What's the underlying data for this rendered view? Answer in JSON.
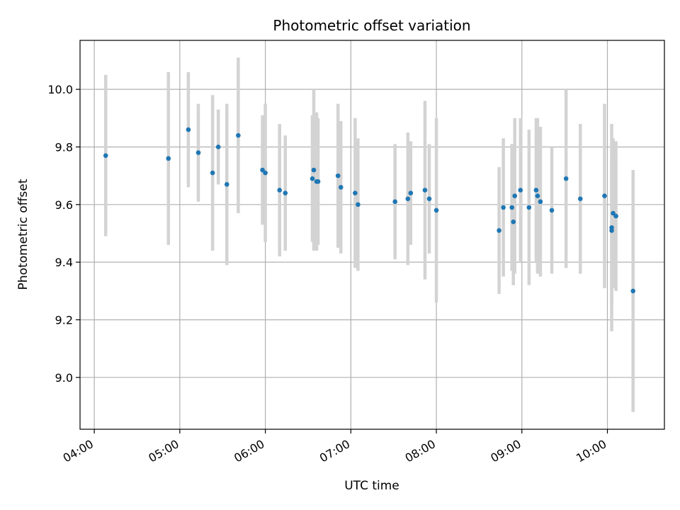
{
  "chart_data": {
    "type": "scatter",
    "title": "Photometric offset variation",
    "xlabel": "UTC time",
    "ylabel": "Photometric offset",
    "xlim": [
      "03:50",
      "10:40"
    ],
    "ylim": [
      8.82,
      10.17
    ],
    "grid": true,
    "x_ticks": [
      "04:00",
      "05:00",
      "06:00",
      "07:00",
      "08:00",
      "09:00",
      "10:00"
    ],
    "y_ticks": [
      "9.0",
      "9.2",
      "9.4",
      "9.6",
      "9.8",
      "10.0"
    ],
    "colors": {
      "marker": "#1f77b4",
      "errorbar": "#d3d3d3",
      "grid": "#b0b0b0"
    },
    "series": [
      {
        "x": [
          "04:08",
          "04:52",
          "05:06",
          "05:13",
          "05:23",
          "05:27",
          "05:33",
          "05:41",
          "05:58",
          "06:00",
          "06:10",
          "06:14",
          "06:33",
          "06:34",
          "06:36",
          "06:37",
          "06:51",
          "06:53",
          "07:03",
          "07:05",
          "07:31",
          "07:40",
          "07:42",
          "07:52",
          "07:55",
          "08:00",
          "08:44",
          "08:47",
          "08:53",
          "08:54",
          "08:55",
          "08:59",
          "09:05",
          "09:10",
          "09:11",
          "09:13",
          "09:21",
          "09:31",
          "09:41",
          "09:58",
          "10:03",
          "10:03",
          "10:04",
          "10:06",
          "10:18"
        ],
        "y": [
          9.77,
          9.76,
          9.86,
          9.78,
          9.71,
          9.8,
          9.67,
          9.84,
          9.72,
          9.71,
          9.65,
          9.64,
          9.69,
          9.72,
          9.68,
          9.68,
          9.7,
          9.66,
          9.64,
          9.6,
          9.61,
          9.62,
          9.64,
          9.65,
          9.62,
          9.58,
          9.51,
          9.59,
          9.59,
          9.54,
          9.63,
          9.65,
          9.59,
          9.65,
          9.63,
          9.61,
          9.58,
          9.69,
          9.62,
          9.63,
          9.52,
          9.51,
          9.57,
          9.56,
          9.3
        ],
        "yerr": [
          0.28,
          0.3,
          0.2,
          0.17,
          0.27,
          0.13,
          0.28,
          0.27,
          0.19,
          0.24,
          0.23,
          0.2,
          0.22,
          0.28,
          0.24,
          0.22,
          0.25,
          0.23,
          0.26,
          0.23,
          0.2,
          0.23,
          0.18,
          0.31,
          0.19,
          0.32,
          0.22,
          0.24,
          0.22,
          0.22,
          0.27,
          0.25,
          0.27,
          0.25,
          0.27,
          0.26,
          0.22,
          0.31,
          0.26,
          0.32,
          0.36,
          0.25,
          0.26,
          0.26,
          0.42
        ]
      }
    ]
  }
}
